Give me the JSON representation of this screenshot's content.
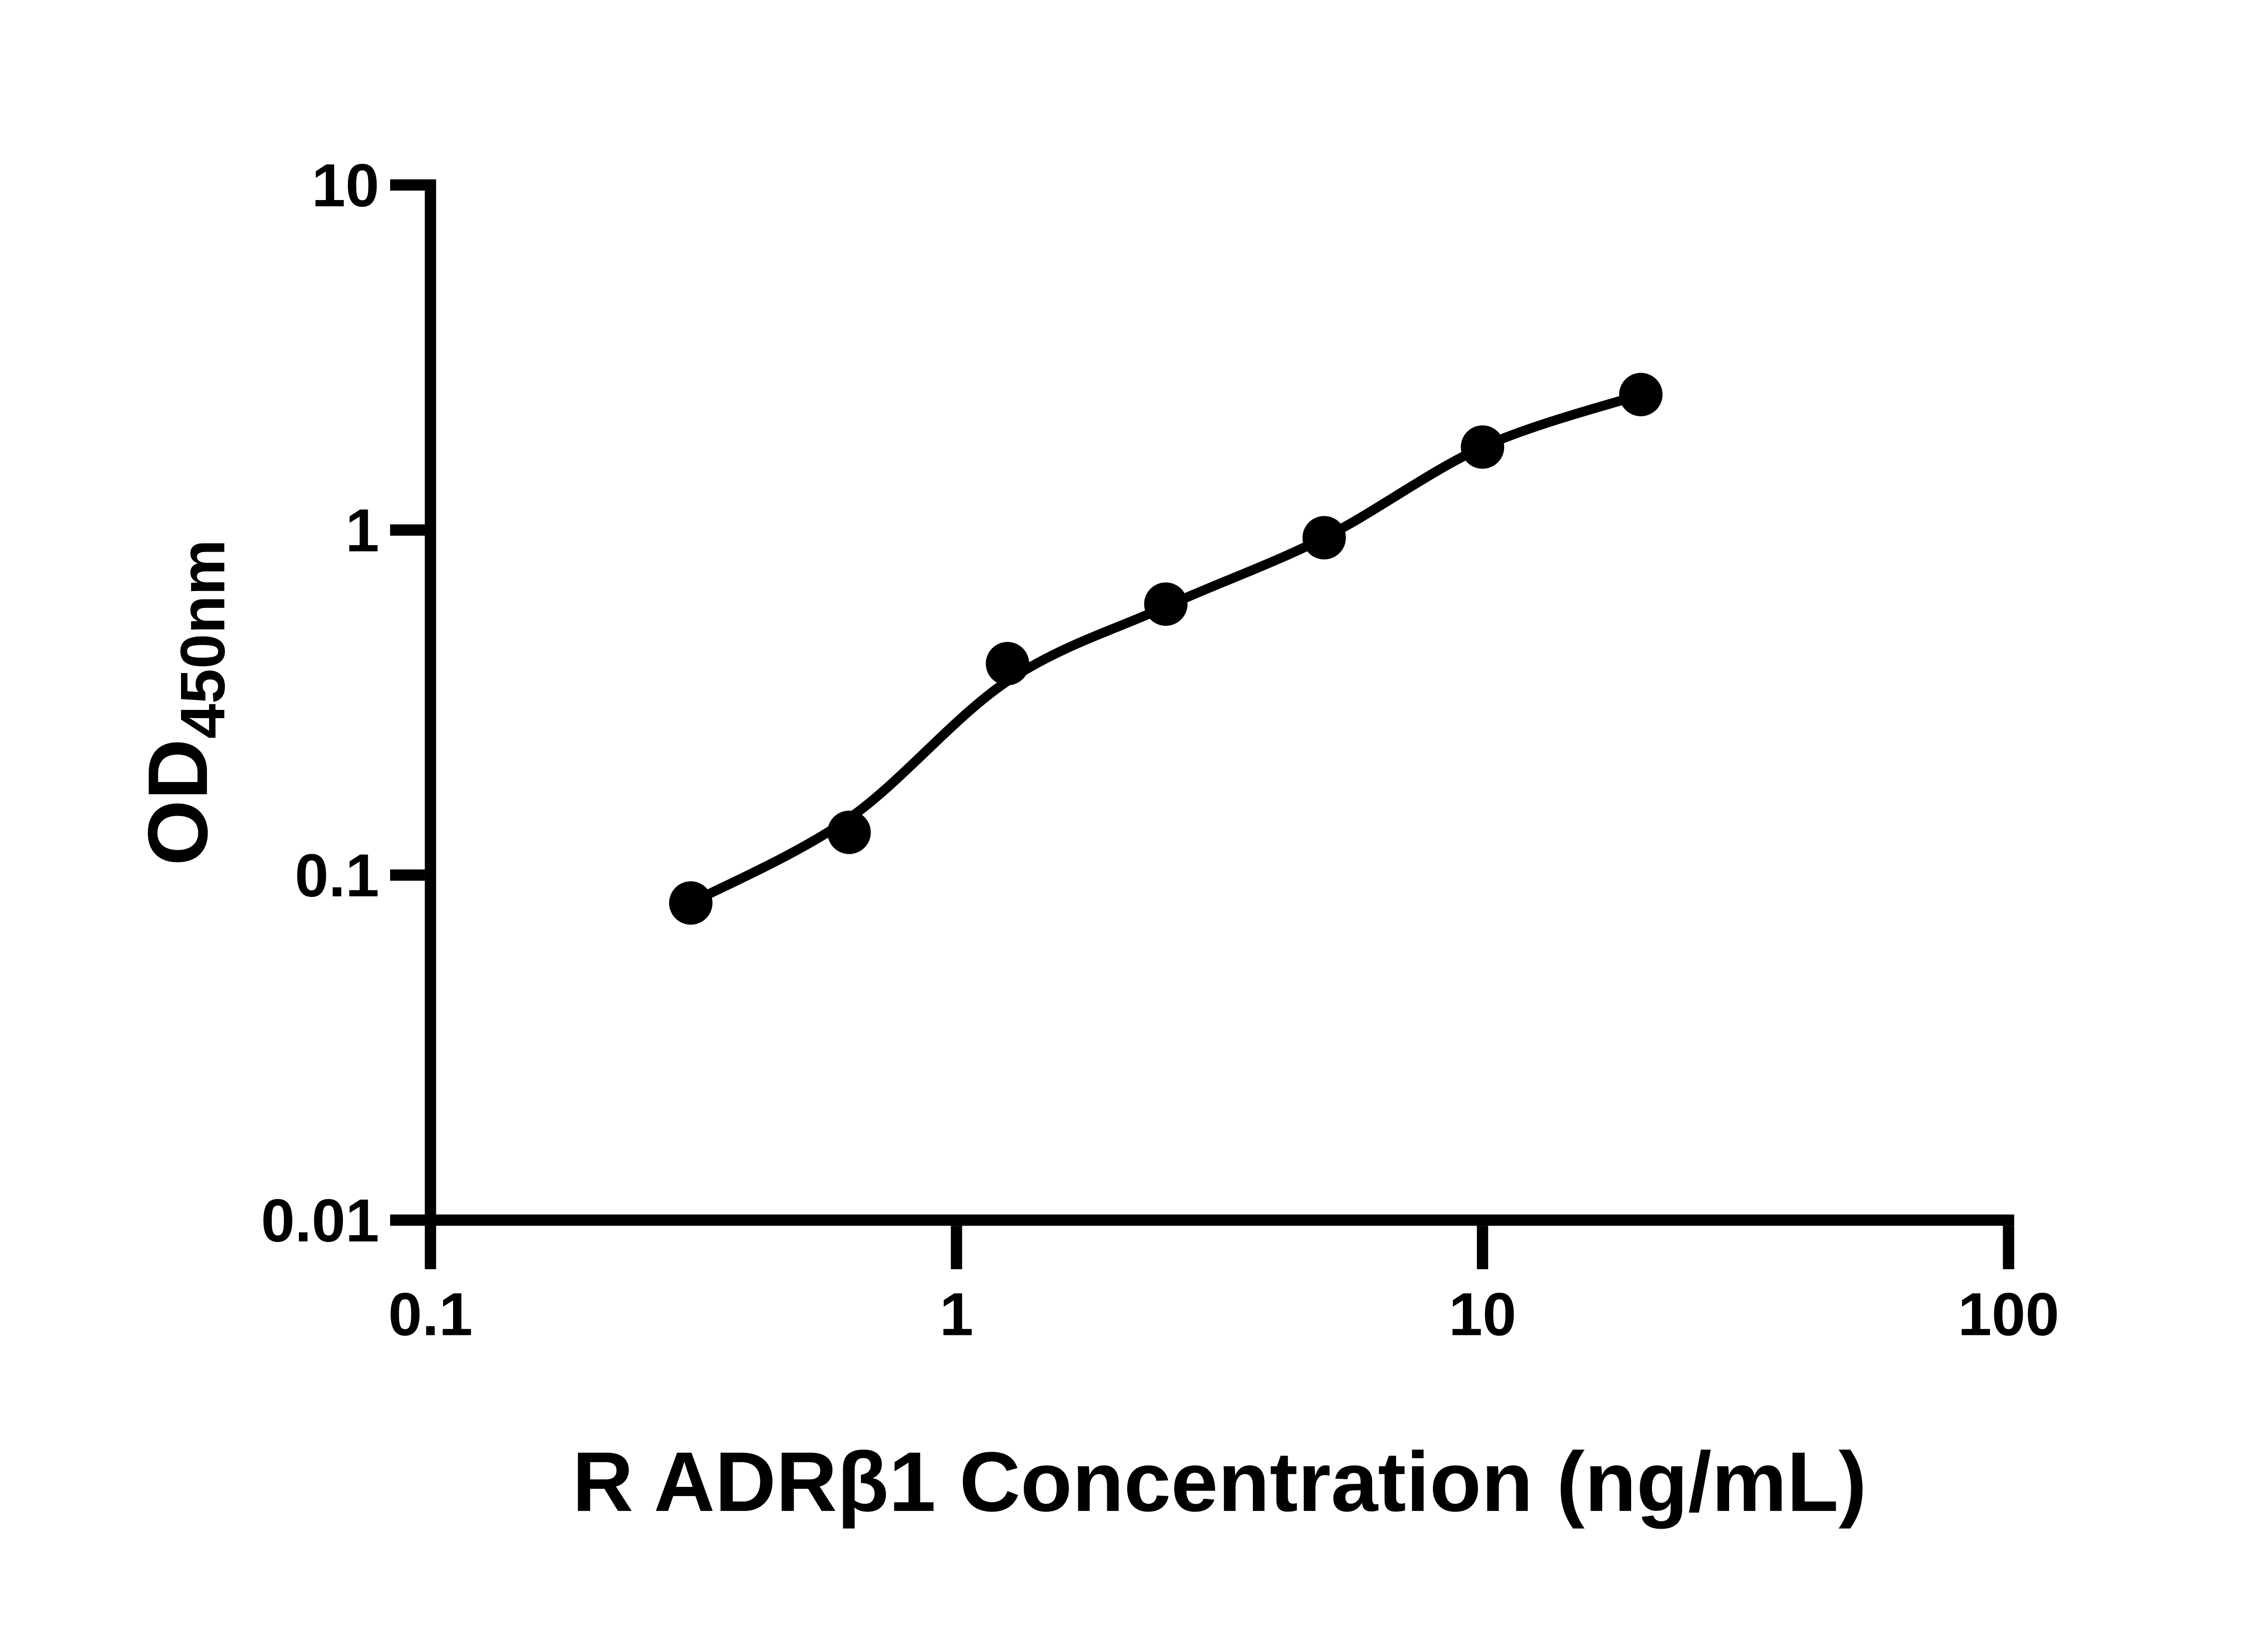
{
  "colors": {
    "foreground": "#000000",
    "background": "#ffffff"
  },
  "chart_data": {
    "type": "scatter",
    "title": "",
    "xlabel": "R ADRβ1 Concentration (ng/mL)",
    "ylabel_main": "OD",
    "ylabel_sub": "450nm",
    "x_scale": "log",
    "y_scale": "log",
    "xlim": [
      0.1,
      100
    ],
    "ylim": [
      0.01,
      10
    ],
    "x_ticks": [
      0.1,
      1,
      10,
      100
    ],
    "x_tick_labels": [
      "0.1",
      "1",
      "10",
      "100"
    ],
    "y_ticks": [
      10,
      1,
      0.1,
      0.01
    ],
    "y_tick_labels": [
      "10",
      "1",
      "0.1",
      "0.01"
    ],
    "grid": false,
    "legend": "none",
    "series": [
      {
        "name": "standard-curve-points",
        "marker": "filled-circle",
        "color": "#000000",
        "x": [
          0.3125,
          0.625,
          1.25,
          2.5,
          5,
          10,
          20
        ],
        "od": [
          0.083,
          0.133,
          0.41,
          0.61,
          0.95,
          1.74,
          2.47
        ]
      }
    ],
    "fit_curve": {
      "name": "fitted-curve",
      "color": "#000000",
      "x": [
        0.3125,
        0.625,
        1.25,
        2.5,
        5,
        10,
        20
      ],
      "od": [
        0.083,
        0.146,
        0.365,
        0.6,
        0.95,
        1.74,
        2.47
      ]
    }
  }
}
